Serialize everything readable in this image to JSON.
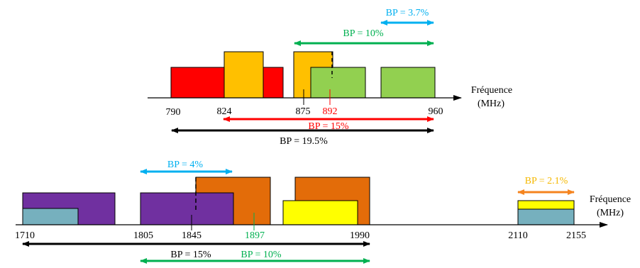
{
  "colors": {
    "red": "#ff0000",
    "orange_yellow": "#ffc000",
    "green": "#92d050",
    "purple": "#7030a0",
    "dark_orange": "#e36c09",
    "teal": "#76b0be",
    "yellow": "#ffff00",
    "cyan": "#00b0f0",
    "dark_green": "#00b050",
    "black": "#000000",
    "arrow_orange": "#f5841f"
  },
  "top": {
    "axis_label_line1": "Fréquence",
    "axis_label_line2": "(MHz)",
    "ticks": {
      "t790": "790",
      "t824": "824",
      "t875": "875",
      "t892": "892",
      "t960": "960"
    },
    "bandwidths": {
      "bp_37": "BP = 3.7%",
      "bp_10": "BP = 10%",
      "bp_15": "BP = 15%",
      "bp_195": "BP = 19.5%"
    }
  },
  "bottom": {
    "axis_label_line1": "Fréquence",
    "axis_label_line2": "(MHz)",
    "ticks": {
      "t1710": "1710",
      "t1805": "1805",
      "t1845": "1845",
      "t1897": "1897",
      "t1990": "1990",
      "t2110": "2110",
      "t2155": "2155"
    },
    "bandwidths": {
      "bp_4": "BP = 4%",
      "bp_21": "BP = 2.1%",
      "bp_15": "BP = 15%",
      "bp_10": "BP = 10%"
    }
  }
}
